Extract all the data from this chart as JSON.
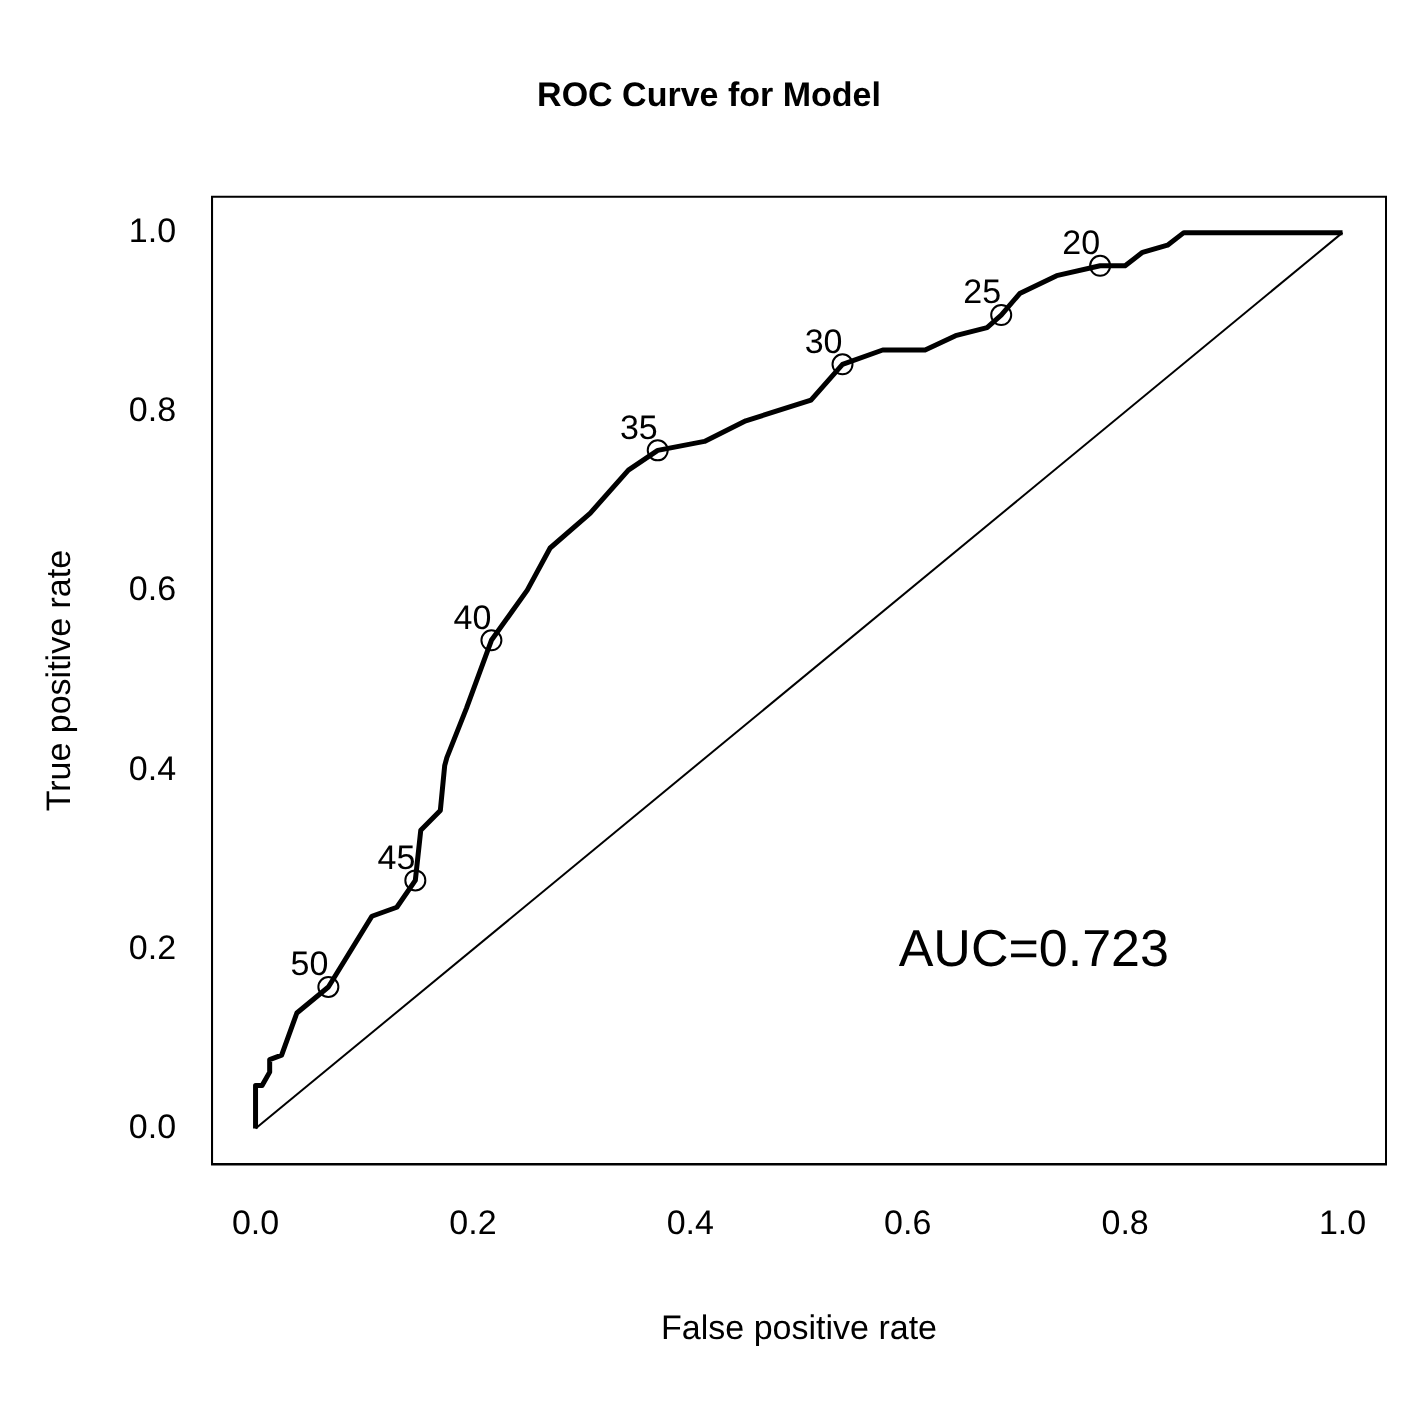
{
  "chart_data": {
    "type": "line",
    "title": "ROC Curve for Model",
    "xlabel": "False positive rate",
    "ylabel": "True positive rate",
    "xlim": [
      -0.04,
      1.04
    ],
    "ylim": [
      -0.04,
      1.04
    ],
    "xticks": [
      {
        "value": 0,
        "label": "0.0"
      },
      {
        "value": 0.2,
        "label": "0.2"
      },
      {
        "value": 0.4,
        "label": "0.4"
      },
      {
        "value": 0.6,
        "label": "0.6"
      },
      {
        "value": 0.8,
        "label": "0.8"
      },
      {
        "value": 1,
        "label": "1.0"
      }
    ],
    "yticks": [
      {
        "value": 0,
        "label": "0.0"
      },
      {
        "value": 0.2,
        "label": "0.2"
      },
      {
        "value": 0.4,
        "label": "0.4"
      },
      {
        "value": 0.6,
        "label": "0.6"
      },
      {
        "value": 0.8,
        "label": "0.8"
      },
      {
        "value": 1,
        "label": "1.0"
      }
    ],
    "grid": false,
    "legend": false,
    "series": [
      {
        "type": "line",
        "color": "#000000",
        "marker": "none",
        "x": [
          0,
          0,
          0.006,
          0.013,
          0.013,
          0.024,
          0.038,
          0.067,
          0.107,
          0.13,
          0.147,
          0.152,
          0.17,
          0.174,
          0.176,
          0.194,
          0.217,
          0.25,
          0.271,
          0.308,
          0.343,
          0.37,
          0.413,
          0.451,
          0.511,
          0.54,
          0.577,
          0.616,
          0.644,
          0.673,
          0.686,
          0.703,
          0.737,
          0.777,
          0.8,
          0.816,
          0.839,
          0.854,
          1
        ],
        "values": [
          0,
          0.048,
          0.048,
          0.063,
          0.077,
          0.082,
          0.129,
          0.158,
          0.237,
          0.247,
          0.277,
          0.333,
          0.355,
          0.405,
          0.414,
          0.469,
          0.545,
          0.601,
          0.648,
          0.687,
          0.735,
          0.757,
          0.767,
          0.79,
          0.813,
          0.853,
          0.869,
          0.869,
          0.885,
          0.894,
          0.908,
          0.932,
          0.952,
          0.963,
          0.963,
          0.978,
          0.986,
          1,
          1
        ]
      },
      {
        "type": "scatter",
        "color": "#000000",
        "marker": "circle",
        "x": [
          0.067,
          0.147,
          0.217,
          0.37,
          0.54,
          0.686,
          0.777
        ],
        "values": [
          0.158,
          0.277,
          0.545,
          0.757,
          0.853,
          0.908,
          0.963
        ]
      },
      {
        "type": "line",
        "color": "#000000",
        "marker": "none",
        "x": [
          0,
          1
        ],
        "values": [
          0,
          1
        ]
      }
    ],
    "annotations": [
      {
        "text": "50",
        "x": 0.067,
        "y": 0.158
      },
      {
        "text": "45",
        "x": 0.147,
        "y": 0.277
      },
      {
        "text": "40",
        "x": 0.217,
        "y": 0.545
      },
      {
        "text": "35",
        "x": 0.37,
        "y": 0.757
      },
      {
        "text": "30",
        "x": 0.54,
        "y": 0.853
      },
      {
        "text": "25",
        "x": 0.686,
        "y": 0.908
      },
      {
        "text": "20",
        "x": 0.777,
        "y": 0.963
      },
      "AUC=0.723"
    ]
  }
}
